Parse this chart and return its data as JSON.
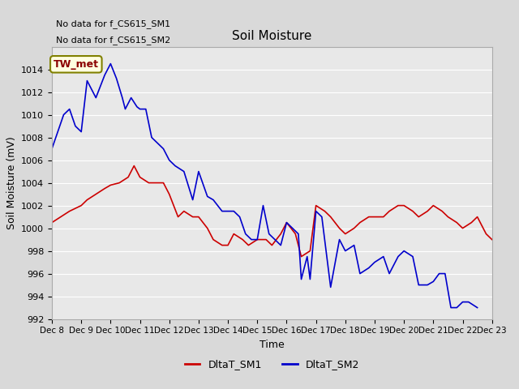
{
  "title": "Soil Moisture",
  "ylabel": "Soil Moisture (mV)",
  "xlabel": "Time",
  "ylim": [
    992,
    1016
  ],
  "yticks": [
    992,
    994,
    996,
    998,
    1000,
    1002,
    1004,
    1006,
    1008,
    1010,
    1012,
    1014
  ],
  "background_color": "#e8e8e8",
  "plot_bg_color": "#e8e8e8",
  "annotations": [
    "No data for f_CS615_SM1",
    "No data for f_CS615_SM2"
  ],
  "legend_label": "TW_met",
  "sm1_color": "#cc0000",
  "sm2_color": "#0000cc",
  "sm1_x": [
    8,
    8.3,
    8.6,
    9.0,
    9.2,
    9.5,
    9.8,
    10.0,
    10.3,
    10.6,
    10.8,
    11.0,
    11.3,
    11.5,
    11.8,
    12.0,
    12.3,
    12.5,
    12.8,
    13.0,
    13.3,
    13.5,
    13.8,
    14.0,
    14.2,
    14.5,
    14.7,
    15.0,
    15.3,
    15.5,
    15.8,
    16.0,
    16.3,
    16.5,
    16.8,
    17.0,
    17.3,
    17.5,
    17.8,
    18.0,
    18.3,
    18.5,
    18.8,
    19.0,
    19.3,
    19.5,
    19.8,
    20.0,
    20.3,
    20.5,
    20.8,
    21.0,
    21.3,
    21.5,
    21.8,
    22.0,
    22.3,
    22.5,
    22.8,
    23.0
  ],
  "sm1_y": [
    1000.5,
    1001.0,
    1001.5,
    1002.0,
    1002.5,
    1003.0,
    1003.5,
    1003.8,
    1004.0,
    1004.5,
    1005.5,
    1004.5,
    1004.0,
    1004.0,
    1004.0,
    1003.0,
    1001.0,
    1001.5,
    1001.0,
    1001.0,
    1000.0,
    999.0,
    998.5,
    998.5,
    999.5,
    999.0,
    998.5,
    999.0,
    999.0,
    998.5,
    999.5,
    1000.5,
    999.5,
    997.5,
    998.0,
    1002.0,
    1001.5,
    1001.0,
    1000.0,
    999.5,
    1000.0,
    1000.5,
    1001.0,
    1001.0,
    1001.0,
    1001.5,
    1002.0,
    1002.0,
    1001.5,
    1001.0,
    1001.5,
    1002.0,
    1001.5,
    1001.0,
    1000.5,
    1000.0,
    1000.5,
    1001.0,
    999.5,
    999.0
  ],
  "sm2_x": [
    8,
    8.2,
    8.4,
    8.6,
    8.8,
    9.0,
    9.2,
    9.5,
    9.8,
    10.0,
    10.2,
    10.4,
    10.5,
    10.7,
    10.9,
    11.0,
    11.2,
    11.4,
    11.6,
    11.8,
    12.0,
    12.2,
    12.5,
    12.8,
    13.0,
    13.3,
    13.5,
    13.8,
    14.0,
    14.2,
    14.4,
    14.6,
    14.8,
    15.0,
    15.2,
    15.4,
    15.6,
    15.8,
    16.0,
    16.2,
    16.4,
    16.5,
    16.7,
    16.8,
    17.0,
    17.2,
    17.5,
    17.8,
    18.0,
    18.3,
    18.5,
    18.8,
    19.0,
    19.3,
    19.5,
    19.8,
    20.0,
    20.3,
    20.5,
    20.8,
    21.0,
    21.2,
    21.4,
    21.6,
    21.8,
    22.0,
    22.2,
    22.5
  ],
  "sm2_y": [
    1007.0,
    1008.5,
    1010.0,
    1010.5,
    1009.0,
    1008.5,
    1013.0,
    1011.5,
    1013.5,
    1014.5,
    1013.2,
    1011.5,
    1010.5,
    1011.5,
    1010.7,
    1010.5,
    1010.5,
    1008.0,
    1007.5,
    1007.0,
    1006.0,
    1005.5,
    1005.0,
    1002.5,
    1005.0,
    1002.8,
    1002.5,
    1001.5,
    1001.5,
    1001.5,
    1001.0,
    999.5,
    999.0,
    999.0,
    1002.0,
    999.5,
    999.0,
    998.5,
    1000.5,
    1000.0,
    999.5,
    995.5,
    997.5,
    995.5,
    1001.5,
    1001.0,
    994.8,
    999.0,
    998.0,
    998.5,
    996.0,
    996.5,
    997.0,
    997.5,
    996.0,
    997.5,
    998.0,
    997.5,
    995.0,
    995.0,
    995.3,
    996.0,
    996.0,
    993.0,
    993.0,
    993.5,
    993.5,
    993.0
  ]
}
